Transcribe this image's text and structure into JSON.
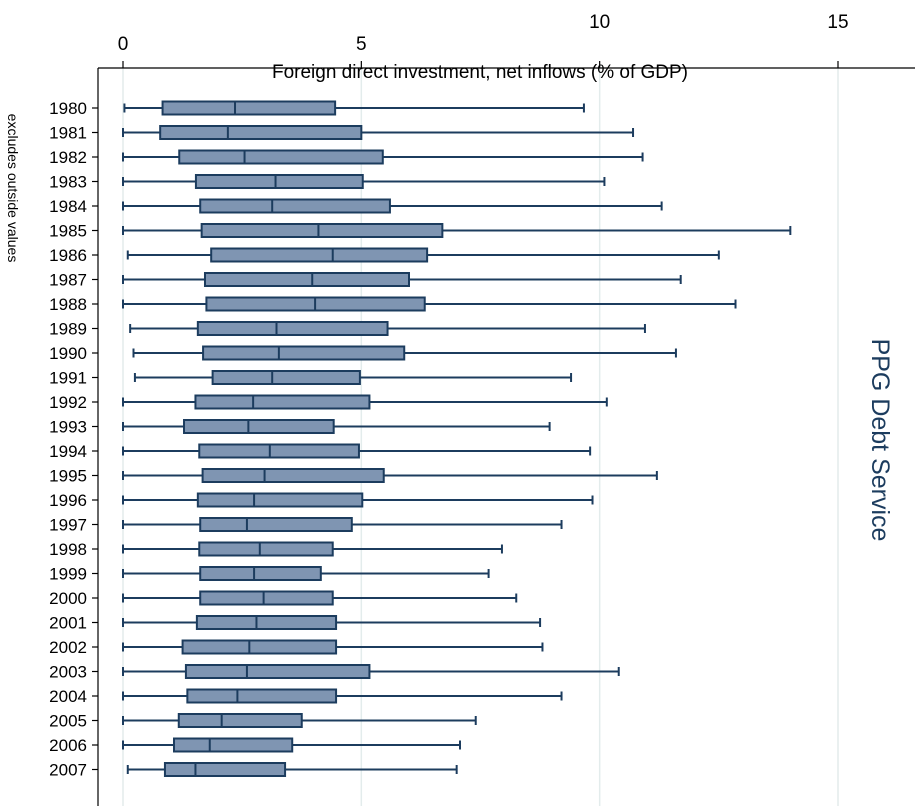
{
  "chart_data": {
    "type": "box",
    "orientation": "horizontal",
    "title": "PPG Debt Service",
    "xlabel": "Foreign direct investment, net inflows (% of GDP)",
    "note": "excludes outside values",
    "xlim": [
      -0.5,
      15.2
    ],
    "xticks": [
      0,
      5,
      10,
      15
    ],
    "grid": true,
    "colors": {
      "box_fill": "#7f95b2",
      "box_stroke": "#1c3c5e",
      "grid": "#e3ecec",
      "title": "#1c3c5e",
      "axis": "#000000"
    },
    "categories": [
      "1980",
      "1981",
      "1982",
      "1983",
      "1984",
      "1985",
      "1986",
      "1987",
      "1988",
      "1989",
      "1990",
      "1991",
      "1992",
      "1993",
      "1994",
      "1995",
      "1996",
      "1997",
      "1998",
      "1999",
      "2000",
      "2001",
      "2002",
      "2003",
      "2004",
      "2005",
      "2006",
      "2007"
    ],
    "boxes": [
      {
        "year": "1980",
        "whisker_low": 0.03,
        "q1": 0.83,
        "median": 2.35,
        "q3": 4.45,
        "whisker_high": 9.67
      },
      {
        "year": "1981",
        "whisker_low": 0.0,
        "q1": 0.78,
        "median": 2.2,
        "q3": 5.0,
        "whisker_high": 10.7
      },
      {
        "year": "1982",
        "whisker_low": 0.0,
        "q1": 1.18,
        "median": 2.55,
        "q3": 5.45,
        "whisker_high": 10.9
      },
      {
        "year": "1983",
        "whisker_low": 0.0,
        "q1": 1.53,
        "median": 3.2,
        "q3": 5.03,
        "whisker_high": 10.1
      },
      {
        "year": "1984",
        "whisker_low": 0.0,
        "q1": 1.62,
        "median": 3.13,
        "q3": 5.6,
        "whisker_high": 11.3
      },
      {
        "year": "1985",
        "whisker_low": 0.0,
        "q1": 1.65,
        "median": 4.1,
        "q3": 6.7,
        "whisker_high": 14.0
      },
      {
        "year": "1986",
        "whisker_low": 0.1,
        "q1": 1.85,
        "median": 4.4,
        "q3": 6.38,
        "whisker_high": 12.5
      },
      {
        "year": "1987",
        "whisker_low": 0.0,
        "q1": 1.72,
        "median": 3.97,
        "q3": 6.0,
        "whisker_high": 11.7
      },
      {
        "year": "1988",
        "whisker_low": 0.0,
        "q1": 1.75,
        "median": 4.03,
        "q3": 6.33,
        "whisker_high": 12.85
      },
      {
        "year": "1989",
        "whisker_low": 0.15,
        "q1": 1.57,
        "median": 3.22,
        "q3": 5.55,
        "whisker_high": 10.95
      },
      {
        "year": "1990",
        "whisker_low": 0.22,
        "q1": 1.68,
        "median": 3.27,
        "q3": 5.9,
        "whisker_high": 11.6
      },
      {
        "year": "1991",
        "whisker_low": 0.25,
        "q1": 1.88,
        "median": 3.13,
        "q3": 4.97,
        "whisker_high": 9.4
      },
      {
        "year": "1992",
        "whisker_low": 0.0,
        "q1": 1.52,
        "median": 2.73,
        "q3": 5.17,
        "whisker_high": 10.15
      },
      {
        "year": "1993",
        "whisker_low": 0.0,
        "q1": 1.28,
        "median": 2.63,
        "q3": 4.42,
        "whisker_high": 8.95
      },
      {
        "year": "1994",
        "whisker_low": 0.0,
        "q1": 1.6,
        "median": 3.08,
        "q3": 4.95,
        "whisker_high": 9.8
      },
      {
        "year": "1995",
        "whisker_low": 0.0,
        "q1": 1.67,
        "median": 2.97,
        "q3": 5.47,
        "whisker_high": 11.2
      },
      {
        "year": "1996",
        "whisker_low": 0.0,
        "q1": 1.57,
        "median": 2.75,
        "q3": 5.02,
        "whisker_high": 9.85
      },
      {
        "year": "1997",
        "whisker_low": 0.0,
        "q1": 1.62,
        "median": 2.6,
        "q3": 4.8,
        "whisker_high": 9.2
      },
      {
        "year": "1998",
        "whisker_low": 0.0,
        "q1": 1.6,
        "median": 2.87,
        "q3": 4.4,
        "whisker_high": 7.95
      },
      {
        "year": "1999",
        "whisker_low": 0.0,
        "q1": 1.62,
        "median": 2.75,
        "q3": 4.15,
        "whisker_high": 7.67
      },
      {
        "year": "2000",
        "whisker_low": 0.0,
        "q1": 1.62,
        "median": 2.95,
        "q3": 4.4,
        "whisker_high": 8.25
      },
      {
        "year": "2001",
        "whisker_low": 0.0,
        "q1": 1.55,
        "median": 2.8,
        "q3": 4.47,
        "whisker_high": 8.75
      },
      {
        "year": "2002",
        "whisker_low": 0.0,
        "q1": 1.25,
        "median": 2.65,
        "q3": 4.47,
        "whisker_high": 8.8
      },
      {
        "year": "2003",
        "whisker_low": 0.0,
        "q1": 1.32,
        "median": 2.6,
        "q3": 5.17,
        "whisker_high": 10.4
      },
      {
        "year": "2004",
        "whisker_low": 0.0,
        "q1": 1.35,
        "median": 2.4,
        "q3": 4.47,
        "whisker_high": 9.2
      },
      {
        "year": "2005",
        "whisker_low": 0.0,
        "q1": 1.17,
        "median": 2.07,
        "q3": 3.75,
        "whisker_high": 7.4
      },
      {
        "year": "2006",
        "whisker_low": 0.0,
        "q1": 1.07,
        "median": 1.82,
        "q3": 3.55,
        "whisker_high": 7.07
      },
      {
        "year": "2007",
        "whisker_low": 0.1,
        "q1": 0.88,
        "median": 1.52,
        "q3": 3.4,
        "whisker_high": 7.0
      }
    ]
  }
}
